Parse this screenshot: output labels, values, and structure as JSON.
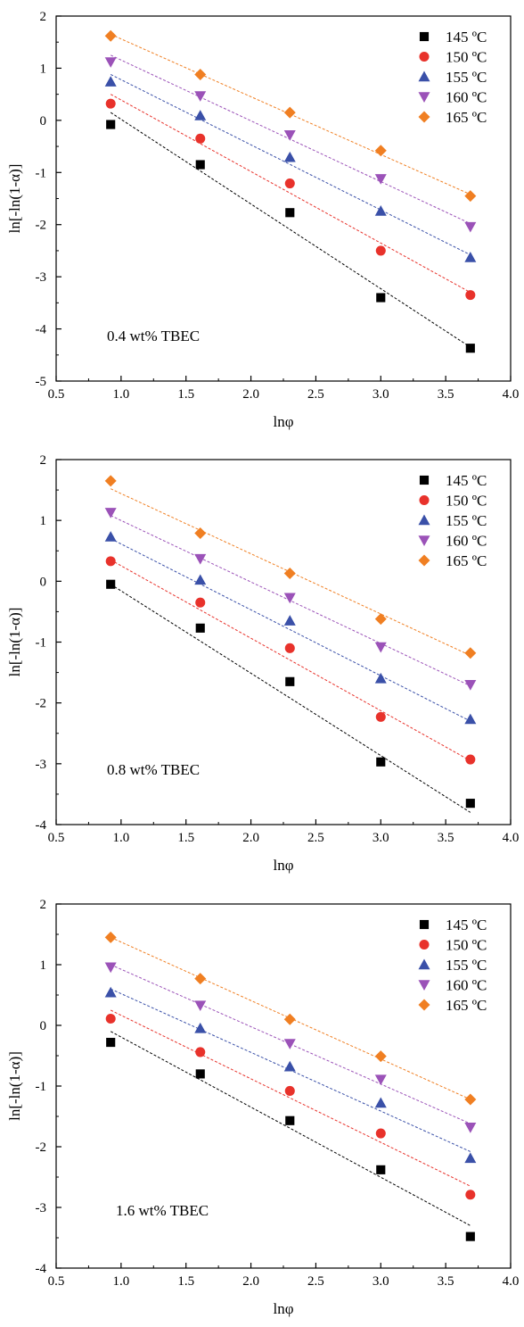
{
  "chart_data": [
    {
      "type": "scatter",
      "annotation": "0.4 wt% TBEC",
      "xlabel": "lnφ",
      "ylabel": "ln[-ln(1-α)]",
      "xlim": [
        0.5,
        4.0
      ],
      "ylim": [
        -5,
        2
      ],
      "x_ticks": [
        "0.5",
        "1.0",
        "1.5",
        "2.0",
        "2.5",
        "3.0",
        "3.5",
        "4.0"
      ],
      "y_ticks": [
        "-5",
        "-4",
        "-3",
        "-2",
        "-1",
        "0",
        "1",
        "2"
      ],
      "grid": false,
      "legend_position": "top-right",
      "x": [
        0.92,
        1.61,
        2.3,
        3.0,
        3.69
      ],
      "series": [
        {
          "name": "145 ºC",
          "marker": "square",
          "color": "#000000",
          "values": [
            -0.08,
            -0.85,
            -1.77,
            -3.4,
            -4.37
          ],
          "fit": [
            0.15,
            -4.35
          ]
        },
        {
          "name": "150 ºC",
          "marker": "circle",
          "color": "#e8322b",
          "values": [
            0.32,
            -0.35,
            -1.21,
            -2.5,
            -3.35
          ],
          "fit": [
            0.5,
            -3.3
          ]
        },
        {
          "name": "155 ºC",
          "marker": "triangle-up",
          "color": "#3a50a8",
          "values": [
            0.74,
            0.09,
            -0.71,
            -1.74,
            -2.63
          ],
          "fit": [
            0.88,
            -2.58
          ]
        },
        {
          "name": "160 ºC",
          "marker": "triangle-down",
          "color": "#9b52b8",
          "values": [
            1.12,
            0.47,
            -0.28,
            -1.12,
            -2.04
          ],
          "fit": [
            1.25,
            -1.98
          ]
        },
        {
          "name": "165 ºC",
          "marker": "diamond",
          "color": "#f07f22",
          "values": [
            1.62,
            0.88,
            0.15,
            -0.58,
            -1.45
          ],
          "fit": [
            1.65,
            -1.42
          ]
        }
      ]
    },
    {
      "type": "scatter",
      "annotation": "0.8 wt% TBEC",
      "xlabel": "lnφ",
      "ylabel": "ln[-ln(1-α)]",
      "xlim": [
        0.5,
        4.0
      ],
      "ylim": [
        -4,
        2
      ],
      "x_ticks": [
        "0.5",
        "1.0",
        "1.5",
        "2.0",
        "2.5",
        "3.0",
        "3.5",
        "4.0"
      ],
      "y_ticks": [
        "-4",
        "-3",
        "-2",
        "-1",
        "0",
        "1",
        "2"
      ],
      "grid": false,
      "legend_position": "top-right",
      "x": [
        0.92,
        1.61,
        2.3,
        3.0,
        3.69
      ],
      "series": [
        {
          "name": "145 ºC",
          "marker": "square",
          "color": "#000000",
          "values": [
            -0.05,
            -0.77,
            -1.65,
            -2.97,
            -3.65
          ],
          "fit": [
            -0.05,
            -3.8
          ]
        },
        {
          "name": "150 ºC",
          "marker": "circle",
          "color": "#e8322b",
          "values": [
            0.33,
            -0.35,
            -1.1,
            -2.23,
            -2.93
          ],
          "fit": [
            0.35,
            -2.95
          ]
        },
        {
          "name": "155 ºC",
          "marker": "triangle-up",
          "color": "#3a50a8",
          "values": [
            0.73,
            0.02,
            -0.65,
            -1.6,
            -2.27
          ],
          "fit": [
            0.7,
            -2.3
          ]
        },
        {
          "name": "160 ºC",
          "marker": "triangle-down",
          "color": "#9b52b8",
          "values": [
            1.13,
            0.37,
            -0.27,
            -1.08,
            -1.7
          ],
          "fit": [
            1.08,
            -1.72
          ]
        },
        {
          "name": "165 ºC",
          "marker": "diamond",
          "color": "#f07f22",
          "values": [
            1.65,
            0.79,
            0.13,
            -0.62,
            -1.18
          ],
          "fit": [
            1.52,
            -1.22
          ]
        }
      ]
    },
    {
      "type": "scatter",
      "annotation": "1.6 wt% TBEC",
      "xlabel": "lnφ",
      "ylabel": "ln[-ln(1-α)]",
      "xlim": [
        0.5,
        4.0
      ],
      "ylim": [
        -4,
        2
      ],
      "x_ticks": [
        "0.5",
        "1.0",
        "1.5",
        "2.0",
        "2.5",
        "3.0",
        "3.5",
        "4.0"
      ],
      "y_ticks": [
        "-4",
        "-3",
        "-2",
        "-1",
        "0",
        "1",
        "2"
      ],
      "grid": false,
      "legend_position": "top-right",
      "x": [
        0.92,
        1.61,
        2.3,
        3.0,
        3.69
      ],
      "series": [
        {
          "name": "145 ºC",
          "marker": "square",
          "color": "#000000",
          "values": [
            -0.28,
            -0.8,
            -1.57,
            -2.38,
            -3.48
          ],
          "fit": [
            -0.1,
            -3.3
          ]
        },
        {
          "name": "150 ºC",
          "marker": "circle",
          "color": "#e8322b",
          "values": [
            0.11,
            -0.44,
            -1.08,
            -1.78,
            -2.79
          ],
          "fit": [
            0.25,
            -2.65
          ]
        },
        {
          "name": "155 ºC",
          "marker": "triangle-up",
          "color": "#3a50a8",
          "values": [
            0.54,
            -0.05,
            -0.68,
            -1.28,
            -2.19
          ],
          "fit": [
            0.6,
            -2.08
          ]
        },
        {
          "name": "160 ºC",
          "marker": "triangle-down",
          "color": "#9b52b8",
          "values": [
            0.96,
            0.33,
            -0.3,
            -0.89,
            -1.68
          ],
          "fit": [
            1.0,
            -1.62
          ]
        },
        {
          "name": "165 ºC",
          "marker": "diamond",
          "color": "#f07f22",
          "values": [
            1.45,
            0.77,
            0.1,
            -0.51,
            -1.22
          ],
          "fit": [
            1.45,
            -1.22
          ]
        }
      ]
    }
  ]
}
